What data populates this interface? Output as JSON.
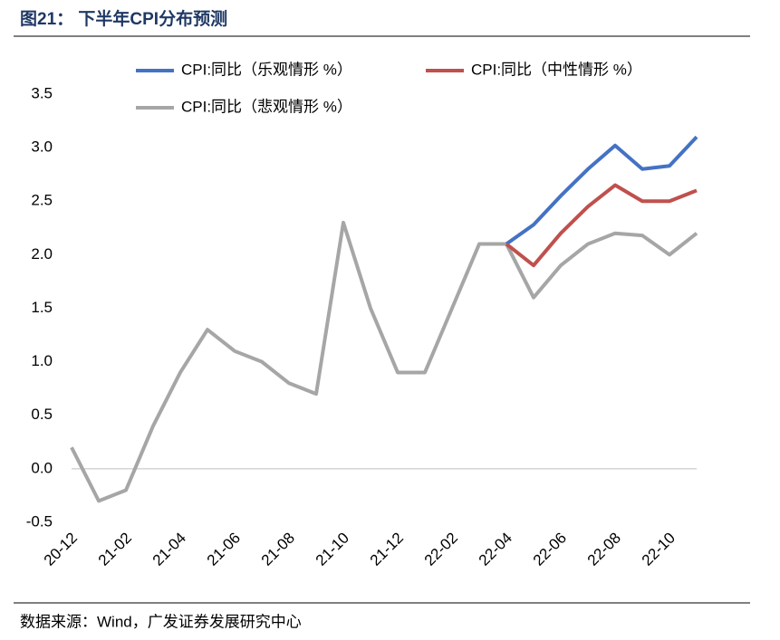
{
  "title": "图21：  下半年CPI分布预测",
  "source": "数据来源：Wind，广发证券发展研究中心",
  "chart_data": {
    "type": "line",
    "categories": [
      "20-12",
      null,
      "21-02",
      null,
      "21-04",
      null,
      "21-06",
      null,
      "21-08",
      null,
      "21-10",
      null,
      "21-12",
      null,
      "22-02",
      null,
      "22-04",
      null,
      "22-06",
      null,
      "22-08",
      null,
      "22-10",
      null
    ],
    "series": [
      {
        "name": "CPI:同比（乐观情形 %）",
        "color": "#4472c4",
        "values": [
          null,
          null,
          null,
          null,
          null,
          null,
          null,
          null,
          null,
          null,
          null,
          null,
          null,
          null,
          null,
          null,
          2.1,
          2.28,
          2.55,
          2.8,
          3.02,
          2.8,
          2.83,
          3.1
        ]
      },
      {
        "name": "CPI:同比（中性情形 %）",
        "color": "#c0504d",
        "values": [
          null,
          null,
          null,
          null,
          null,
          null,
          null,
          null,
          null,
          null,
          null,
          null,
          null,
          null,
          null,
          null,
          2.1,
          1.9,
          2.2,
          2.45,
          2.65,
          2.5,
          2.5,
          2.6
        ]
      },
      {
        "name": "CPI:同比（悲观情形 %）",
        "color": "#a6a6a6",
        "values": [
          0.2,
          -0.3,
          -0.2,
          0.4,
          0.9,
          1.3,
          1.1,
          1.0,
          0.8,
          0.7,
          2.3,
          1.5,
          0.9,
          0.9,
          1.5,
          2.1,
          2.1,
          1.6,
          1.9,
          2.1,
          2.2,
          2.18,
          2.0,
          2.2
        ]
      }
    ],
    "ylim": [
      -0.5,
      3.5
    ],
    "yticks": [
      -0.5,
      {
        "value": 0,
        "label": "0.0"
      },
      0.5,
      {
        "value": 1,
        "label": "1.0"
      },
      1.5,
      {
        "value": 2,
        "label": "2.0"
      },
      2.5,
      {
        "value": 3,
        "label": "3.0"
      },
      3.5
    ]
  }
}
